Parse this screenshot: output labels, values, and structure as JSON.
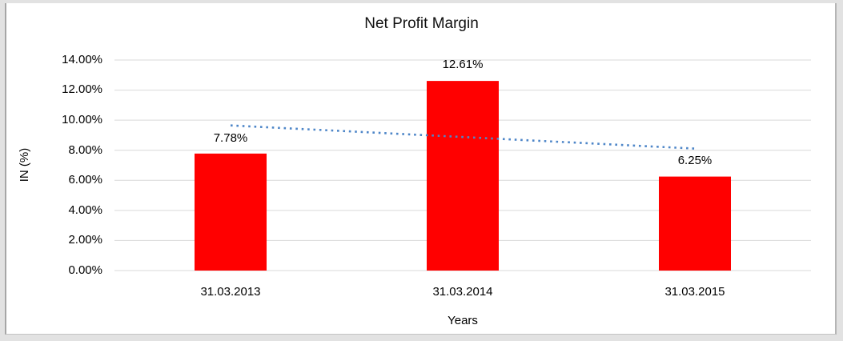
{
  "chart_data": {
    "type": "bar",
    "title": "Net Profit Margin",
    "xlabel": "Years",
    "ylabel": "IN (%)",
    "categories": [
      "31.03.2013",
      "31.03.2014",
      "31.03.2015"
    ],
    "values": [
      7.78,
      12.61,
      6.25
    ],
    "data_labels": [
      "7.78%",
      "12.61%",
      "6.25%"
    ],
    "ytick_labels": [
      "0.00%",
      "2.00%",
      "4.00%",
      "6.00%",
      "8.00%",
      "10.00%",
      "12.00%",
      "14.00%"
    ],
    "ylim": [
      0,
      14
    ],
    "ytick_step": 2,
    "grid": true,
    "legend_position": "none",
    "bar_color": "#ff0000",
    "gridline_color": "#d9d9d9",
    "background_color": "#ffffff",
    "trendline": {
      "type": "linear",
      "style": "dotted",
      "color": "#4e86c8",
      "start_value": 9.65,
      "end_value": 8.11
    }
  }
}
